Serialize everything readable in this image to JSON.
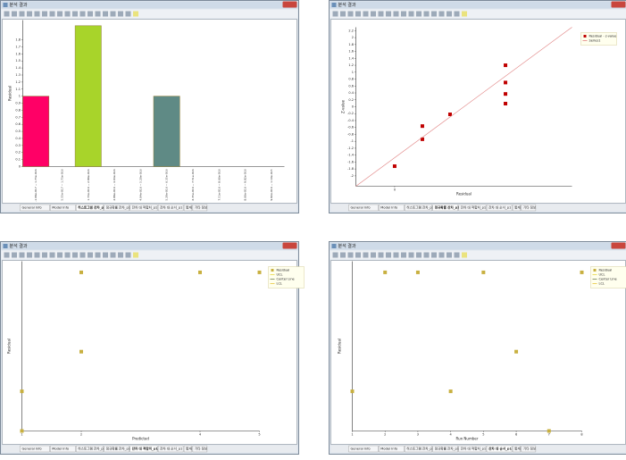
{
  "windows": [
    {
      "title": "분석 결과",
      "tabs": [
        "General Info",
        "Model Info",
        "히스토그램 잔차_p1",
        "정규확률 잔차_p1",
        "잔차 대 적합치_p1",
        "잔차 대 순서_p1",
        "통계",
        "기타 정보"
      ],
      "active_tab": 2
    },
    {
      "title": "분석 결과",
      "tabs": [
        "General Info",
        "Model Info",
        "히스토그램 잔차_p1",
        "정규확률 잔차_p1",
        "잔차 대 적합치_p1",
        "잔차 대 순서_p1",
        "통계",
        "기타 정보"
      ],
      "active_tab": 3
    },
    {
      "title": "분석 결과",
      "tabs": [
        "General Info",
        "Model Info",
        "히스토그램 잔차_p1",
        "정규확률 잔차_p1",
        "잔차 대 적합치_p1",
        "잔차 대 순서_p1",
        "통계",
        "기타 정보"
      ],
      "active_tab": 4
    },
    {
      "title": "분석 결과",
      "tabs": [
        "General Info",
        "Model Info",
        "히스토그램 잔차_p1",
        "정규확률 잔차_p1",
        "잔차 대 적합치_p1",
        "잔차 대 순서_p1",
        "통계",
        "기타 정보"
      ],
      "active_tab": 5
    }
  ],
  "chart_data": [
    {
      "type": "bar",
      "ylabel": "Residual",
      "categories": [
        "-1.09e-017 ~ 1.73e-016",
        "5.55e-017 ~ 1.73e-016",
        "1.73e-016 ~ 2.89e-016",
        "2.89e-016 ~ 4.04e-016",
        "4.04e-016 ~ 5.20e-016",
        "5.20e-016 ~ 6.35e-016",
        "6.35e-016 ~ 7.51e-016",
        "7.51e-016 ~ 8.66e-016",
        "8.66e-016 ~ 9.82e-016",
        "9.82e-016 ~ 1.10e-015"
      ],
      "values": [
        1,
        0,
        2,
        0,
        0,
        1,
        0,
        0,
        0,
        0
      ],
      "colors": [
        "#ff0066",
        "#ff0066",
        "#a8d42a",
        "#a8d42a",
        "#a8d42a",
        "#5f8a85",
        "#5f8a85",
        "#5f8a85",
        "#5f8a85",
        "#5f8a85"
      ],
      "ylim": [
        0,
        2.08
      ],
      "yticks": [
        0,
        0.1,
        0.2,
        0.3,
        0.4,
        0.5,
        0.6,
        0.7,
        0.8,
        0.9,
        1,
        1.1,
        1.2,
        1.3,
        1.4,
        1.5,
        1.6,
        1.7,
        1.8
      ]
    },
    {
      "type": "scatter",
      "xlabel": "Residual",
      "ylabel": "Z-value",
      "legend": "upper right",
      "xlim": [
        -1.4,
        6.4
      ],
      "xticks": [
        0
      ],
      "ylim": [
        -2.3,
        2.3
      ],
      "yticks": [
        -2,
        -1.8,
        -1.6,
        -1.4,
        -1.2,
        -1,
        -0.8,
        -0.6,
        -0.4,
        -0.2,
        0,
        0.2,
        0.4,
        0.6,
        0.8,
        1,
        1.2,
        1.4,
        1.6,
        1.8,
        2,
        2.2
      ],
      "series": [
        {
          "name": "Residual - z-value",
          "color": "#c00000",
          "x": [
            0,
            1,
            1,
            2,
            4,
            4,
            4,
            4
          ],
          "values": [
            -1.72,
            -0.56,
            -0.94,
            -0.22,
            1.2,
            0.7,
            0.37,
            0.09
          ]
        },
        {
          "name": "Series1",
          "color": "#e08080",
          "line": true,
          "x": [
            -1.4,
            6.4
          ],
          "values": [
            -2.3,
            2.3
          ]
        }
      ]
    },
    {
      "type": "scatter",
      "xlabel": "Predicted",
      "ylabel": "Residual",
      "legend": "upper right",
      "xlim": [
        1,
        5
      ],
      "xticks": [
        1,
        2,
        4,
        5
      ],
      "ylim": [
        0,
        1.07
      ],
      "yticks": [],
      "series": [
        {
          "name": "Residual",
          "color": "#c8b040",
          "x": [
            1,
            1,
            2,
            2,
            4,
            5
          ],
          "values": [
            0.25,
            0,
            1,
            0.5,
            1,
            1
          ]
        },
        {
          "name": "UCL",
          "color": "#e8d840",
          "line": true,
          "x": [],
          "values": []
        },
        {
          "name": "Center Line",
          "color": "#708050",
          "line": true,
          "x": [],
          "values": []
        },
        {
          "name": "LCL",
          "color": "#e8c840",
          "line": true,
          "x": [],
          "values": []
        }
      ]
    },
    {
      "type": "scatter",
      "xlabel": "Run Number",
      "ylabel": "Residual",
      "legend": "upper right",
      "xlim": [
        1,
        8
      ],
      "xticks": [
        1,
        2,
        3,
        4,
        5,
        6,
        7,
        8
      ],
      "ylim": [
        0,
        1.07
      ],
      "yticks": [],
      "series": [
        {
          "name": "Residual",
          "color": "#c8b040",
          "x": [
            1,
            2,
            3,
            4,
            5,
            6,
            7,
            8
          ],
          "values": [
            0.25,
            1,
            1,
            0.25,
            1,
            0.5,
            0,
            1
          ]
        },
        {
          "name": "UCL",
          "color": "#e8d840",
          "line": true,
          "x": [],
          "values": []
        },
        {
          "name": "Center Line",
          "color": "#708050",
          "line": true,
          "x": [],
          "values": []
        },
        {
          "name": "LCL",
          "color": "#e8c840",
          "line": true,
          "x": [],
          "values": []
        }
      ]
    }
  ]
}
